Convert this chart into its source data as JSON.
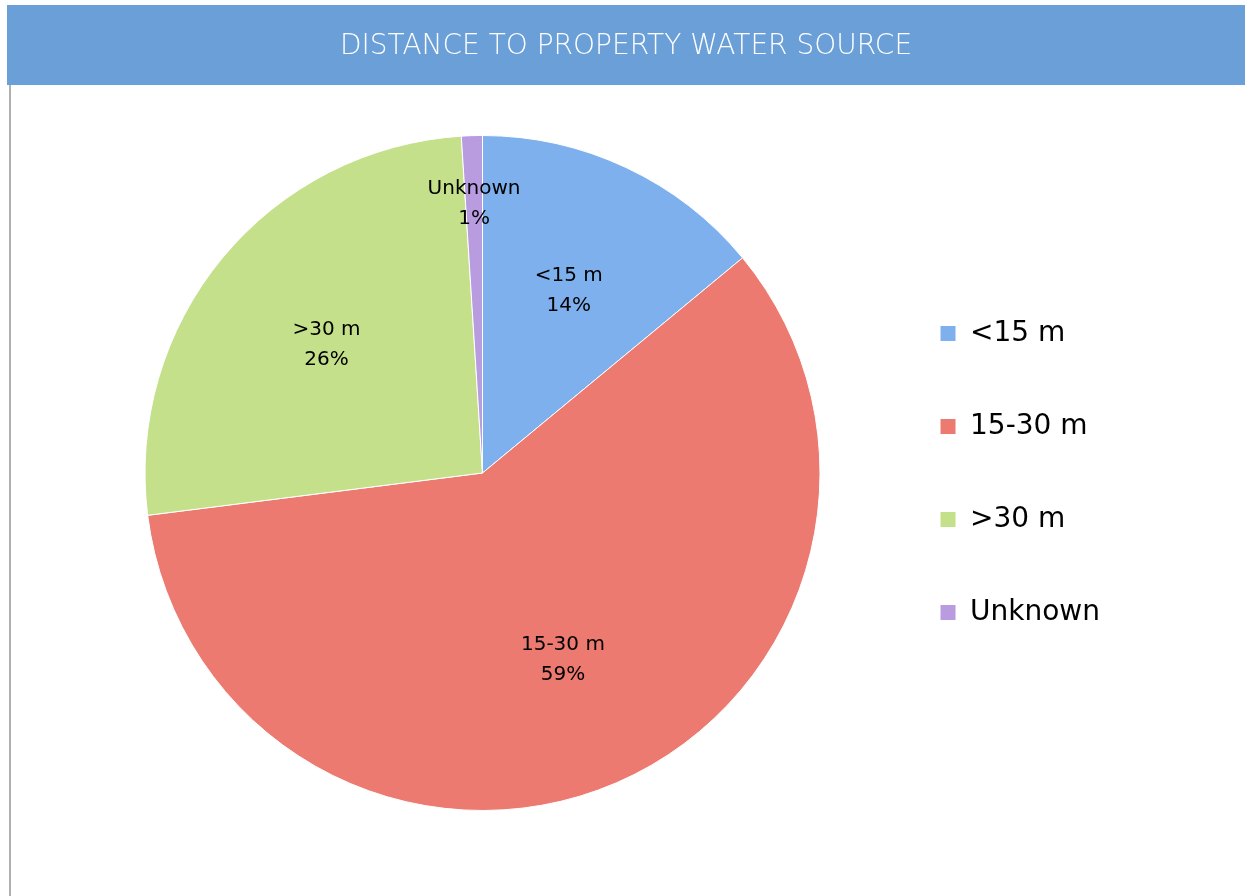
{
  "chart_data": {
    "type": "pie",
    "title": "DISTANCE TO PROPERTY WATER SOURCE",
    "categories": [
      "<15 m",
      "15-30 m",
      ">30 m",
      "Unknown"
    ],
    "values": [
      14,
      59,
      26,
      1
    ],
    "value_labels": [
      "14%",
      "59%",
      "26%",
      "1%"
    ],
    "colors": [
      "#7fb0ee",
      "#ec7a70",
      "#c5e08a",
      "#b99be0"
    ],
    "legend": "right"
  }
}
